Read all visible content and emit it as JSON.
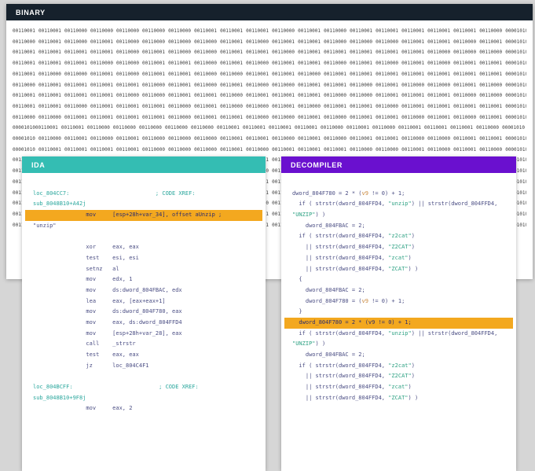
{
  "colors": {
    "page_bg": "#d6d6d6",
    "binary_header_bg": "#16212c",
    "ida_header_bg": "#34bdb3",
    "decompiler_header_bg": "#6a10cf",
    "highlight_bg": "#f3a81f",
    "label_teal": "#2aa79d",
    "code_navy": "#4b4e84",
    "string_green": "#2fa284"
  },
  "binary_panel": {
    "title": "BINARY",
    "rows": [
      "00110001 00110001 00110000 00110000 00110000 00110000 00110000 00110001 00110001 00110001 00110000 00110001 00110000 00110001 00110001 00110001 00110001 00110001 00110000 00001010",
      "00110000 00110001 00110000 00110001 00110000 00110000 00110000 00110000 00110001 00110000 00110001 00110001 00110000 00110000 00110000 00110001 00110001 00110000 00110001 00001010",
      "00110001 00110001 00110001 00110001 00110000 00110001 00110000 00110000 00110001 00110001 00110000 00110001 00110001 00110001 00110001 00110001 00110000 00110000 00110000 00001010",
      "00110001 00110001 00110001 00110000 00110000 00110001 00110001 00110000 00110001 00110000 00110001 00110001 00110000 00110001 00110000 00110001 00110000 00110001 00110001 00001010",
      "00110001 00110000 00110000 00110001 00110000 00110001 00110001 00110000 00110000 00110001 00110001 00110000 00110001 00110001 00110001 00110001 00110001 00110001 00110001 00001010",
      "00110000 00110001 00110001 00110001 00110001 00110000 00110001 00110000 00110001 00110000 00110000 00110001 00110001 00110000 00110001 00110000 00110000 00110001 00110000 00001010",
      "00110001 00110001 00110001 00110001 00110000 00110000 00110001 00110001 00110000 00110001 00110001 00110001 00110000 00110000 00110001 00110001 00110001 00110000 00110000 00001010",
      "00110001 00110001 00110000 00110001 00110001 00110001 00110000 00110001 00110000 00110000 00110001 00110000 00110001 00110001 00110000 00110001 00110001 00110001 00110001 00001010",
      "00110000 00110000 00110001 00110001 00110001 00110001 00110000 00110001 00110001 00110000 00110000 00110001 00110000 00110001 00110001 00110000 00110001 00110000 00110001 00001010",
      "0000101000110001 00110001 00110000 00110000 00110000 00110000 00110000 00110001 00110001 00110001 00110001 00110000 00110001 00110000 00110001 00110001 00110001 00110000 00001010",
      "00001010 00110000 00110001 00110000 00110001 00110000 00110000 00110000 00110001 00110001 00110000 00110001 00110000 00110001 00110001 00110000 00110000 00110001 00110001 00001010",
      "00001010 00110001 00110001 00110001 00110001 00110000 00110000 00110000 00110001 00110000 00110001 00110001 00110001 00110000 00110000 00110001 00110000 00110001 00110000 00001010",
      "00110001 00110000 00110001 00110001 00110001 00110000 00110001 00110000 00110000 00110001 00110001 00110001 00110000 00110001 00110000 00110000 00110001 00110001 00110000 00001010",
      "00110000 00110001 00110000 00110000 00110001 00110001 00110000 00110001 00110001 00110000 00110001 00110000 00110001 00110001 00110000 00110001 00110000 00110000 00110001 00001010",
      "00110001 00110001 00110000 00110001 00110000 00110001 00110001 00110000 00110001 00110001 00110000 00110000 00110001 00110000 00110001 00110001 00110001 00110000 00110001 00001010",
      "00110000 00110000 00110001 00110000 00110001 00110001 00110001 00110001 00110000 00110001 00110001 00110000 00110000 00110001 00110001 00110000 00110001 00110001 00110000 00001010",
      "00110001 00110001 00110001 00110000 00110001 00110000 00110000 00110001 00110001 00110000 00110001 00110001 00110000 00110000 00110001 00110001 00110000 00110001 00110001 00001010",
      "00110000 00110001 00110001 00110001 00110000 00110001 00110001 00110000 00110000 00110001 00110000 00110001 00110001 00110001 00110000 00110000 00110001 00110000 00110000 00001010",
      "00110001 00110000 00110000 00110001 00110001 00110001 00110000 00110001 00110000 00110001 00110001 00110000 00110001 00110000 00110001 00110001 00110000 00110001 00110001 00001010"
    ]
  },
  "ida_panel": {
    "title": "IDA",
    "lines": [
      {
        "t": "",
        "c": "code"
      },
      {
        "t": "loc_804CC7:                          ; CODE XREF:",
        "c": "label"
      },
      {
        "t": "sub_8048B10+A42j",
        "c": "label"
      },
      {
        "t": "                mov     [esp+28h+var_34], offset aUnzip ;",
        "c": "code",
        "hl": true
      },
      {
        "t": "\"unzip\"",
        "c": "code"
      },
      {
        "t": "",
        "c": "code"
      },
      {
        "t": "                xor     eax, eax",
        "c": "code"
      },
      {
        "t": "                test    esi, esi",
        "c": "code"
      },
      {
        "t": "                setnz   al",
        "c": "code"
      },
      {
        "t": "                mov     edx, 1",
        "c": "code"
      },
      {
        "t": "                mov     ds:dword_804FBAC, edx",
        "c": "code"
      },
      {
        "t": "                lea     eax, [eax+eax+1]",
        "c": "code"
      },
      {
        "t": "                mov     ds:dword_804F780, eax",
        "c": "code"
      },
      {
        "t": "                mov     eax, ds:dword_804FFD4",
        "c": "code"
      },
      {
        "t": "                mov     [esp+28h+var_28], eax",
        "c": "code"
      },
      {
        "t": "                call    _strstr",
        "c": "code"
      },
      {
        "t": "                test    eax, eax",
        "c": "code"
      },
      {
        "t": "                jz      loc_804C4F1",
        "c": "code"
      },
      {
        "t": "",
        "c": "code"
      },
      {
        "t": "loc_804BCFF:                          ; CODE XREF:",
        "c": "label"
      },
      {
        "t": "sub_8048B10+9F8j",
        "c": "label"
      },
      {
        "t": "                mov     eax, 2",
        "c": "code"
      }
    ]
  },
  "decompiler_panel": {
    "title": "DECOMPILER",
    "lines": [
      {
        "t": ""
      },
      {
        "t": "dword_804F780 = 2 * (v9 != 0) + 1;"
      },
      {
        "t": "  if ( strstr(dword_804FFD4, \"unzip\") || strstr(dword_804FFD4,"
      },
      {
        "t": "\"UNZIP\") )"
      },
      {
        "t": "    dword_804FBAC = 2;"
      },
      {
        "t": "  if ( strstr(dword_804FFD4, \"z2cat\")"
      },
      {
        "t": "    || strstr(dword_804FFD4, \"Z2CAT\")"
      },
      {
        "t": "    || strstr(dword_804FFD4, \"zcat\")"
      },
      {
        "t": "    || strstr(dword_804FFD4, \"ZCAT\") )"
      },
      {
        "t": "  {"
      },
      {
        "t": "    dword_804FBAC = 2;"
      },
      {
        "t": "    dword_804F780 = (v9 != 0) + 1;"
      },
      {
        "t": "  }"
      },
      {
        "t": "  dword_804F780 = 2 * (v9 != 0) + 1;",
        "hl": true
      },
      {
        "t": "  if ( strstr(dword_804FFD4, \"unzip\") || strstr(dword_804FFD4,"
      },
      {
        "t": "\"UNZIP\") )"
      },
      {
        "t": "    dword_804FBAC = 2;"
      },
      {
        "t": "  if ( strstr(dword_804FFD4, \"z2cat\")"
      },
      {
        "t": "    || strstr(dword_804FFD4, \"Z2CAT\")"
      },
      {
        "t": "    || strstr(dword_804FFD4, \"zcat\")"
      },
      {
        "t": "    || strstr(dword_804FFD4, \"ZCAT\") )"
      }
    ]
  }
}
